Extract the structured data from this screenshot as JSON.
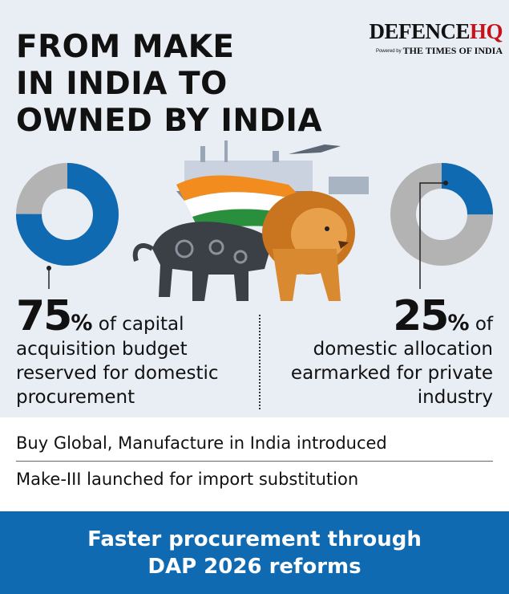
{
  "header": {
    "title_lines": [
      "FROM MAKE",
      "IN INDIA TO",
      "OWNED BY INDIA"
    ],
    "logo": {
      "brand_main": "DEFENCE",
      "brand_accent": "HQ",
      "powered_prefix": "Powered by",
      "powered_name": "THE TIMES OF INDIA"
    }
  },
  "stats": {
    "left": {
      "value": 75,
      "number": "75",
      "percent_sign": "%",
      "text_inline": " of capital",
      "text_rest": "acquisition budget reserved for domestic procurement"
    },
    "right": {
      "value": 25,
      "number": "25",
      "percent_sign": "%",
      "text_inline": " of",
      "text_rest": "domestic allocation earmarked for private industry"
    }
  },
  "facts": [
    "Buy Global, Manufacture in India introduced",
    "Make-III launched for import substitution"
  ],
  "banner": {
    "lines": [
      "Faster procurement through",
      "DAP 2026 reforms"
    ]
  },
  "colors": {
    "background": "#e9edf4",
    "accent_blue": "#0f6ab2",
    "donut_gray": "#b3b3b3",
    "logo_red": "#c4141b"
  },
  "illustration": {
    "icon": "lion-machine-hybrid-icon"
  }
}
